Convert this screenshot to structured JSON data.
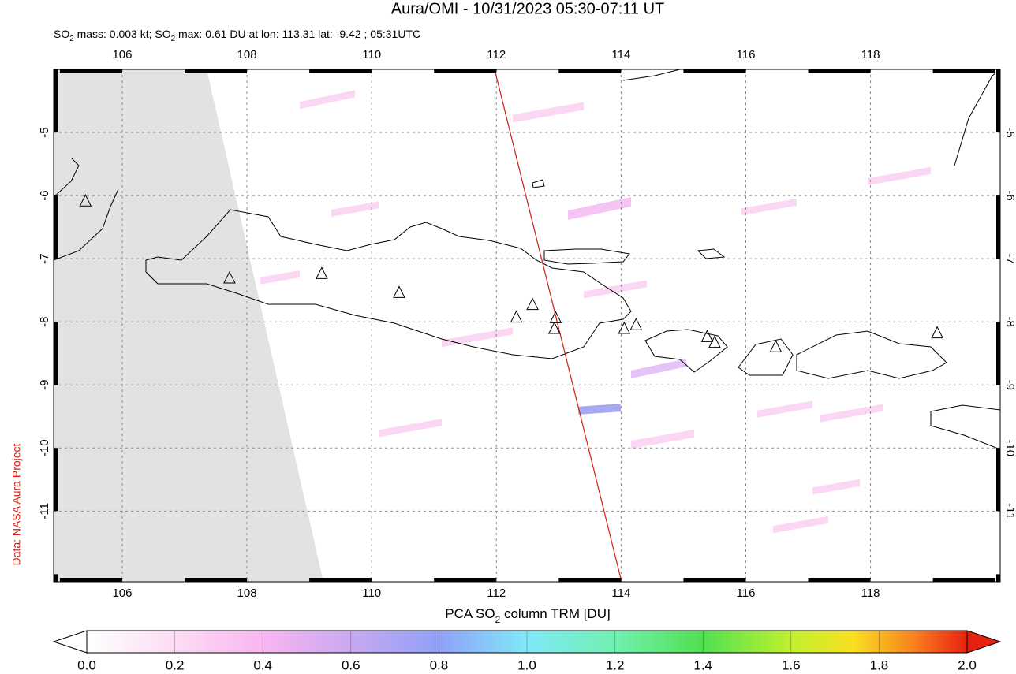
{
  "chart_data": {
    "type": "map",
    "title": "Aura/OMI - 10/31/2023 05:30-07:11 UT",
    "subtitle_parts": [
      {
        "text": "SO"
      },
      {
        "text": "2",
        "sub": true
      },
      {
        "text": " mass: 0.003 kt; SO"
      },
      {
        "text": "2",
        "sub": true
      },
      {
        "text": " max: 0.61 DU at lon: 113.31 lat: -9.42 ; 05:31UTC"
      }
    ],
    "xlim": [
      104.9,
      120.08
    ],
    "ylim": [
      -12.12,
      -4.0
    ],
    "xticks": [
      106,
      108,
      110,
      112,
      114,
      116,
      118
    ],
    "yticks": [
      -5,
      -6,
      -7,
      -8,
      -9,
      -10,
      -11
    ],
    "grid": true,
    "volcanoes": {
      "lon": [
        105.41,
        107.72,
        109.2,
        110.44,
        112.32,
        112.58,
        112.95,
        112.93,
        114.05,
        114.24,
        115.38,
        115.5,
        116.48,
        119.07
      ],
      "lat": [
        -6.09,
        -7.31,
        -7.24,
        -7.54,
        -7.93,
        -7.73,
        -7.94,
        -8.11,
        -8.11,
        -8.05,
        -8.24,
        -8.33,
        -8.4,
        -8.18
      ]
    },
    "colorbar": {
      "label_parts": [
        {
          "text": "PCA SO"
        },
        {
          "text": "2",
          "sub": true
        },
        {
          "text": " column TRM [DU]"
        }
      ],
      "lim": [
        0,
        2
      ],
      "ticks": [
        {
          "value": 0,
          "label": "0.0"
        },
        {
          "value": 0.2,
          "label": "0.2"
        },
        {
          "value": 0.4,
          "label": "0.4"
        },
        {
          "value": 0.6,
          "label": "0.6"
        },
        {
          "value": 0.8,
          "label": "0.8"
        },
        {
          "value": 1.0,
          "label": "1.0"
        },
        {
          "value": 1.2,
          "label": "1.2"
        },
        {
          "value": 1.4,
          "label": "1.4"
        },
        {
          "value": 1.6,
          "label": "1.6"
        },
        {
          "value": 1.8,
          "label": "1.8"
        },
        {
          "value": 2.0,
          "label": "2.0"
        }
      ]
    },
    "credit": "Data: NASA Aura Project"
  }
}
